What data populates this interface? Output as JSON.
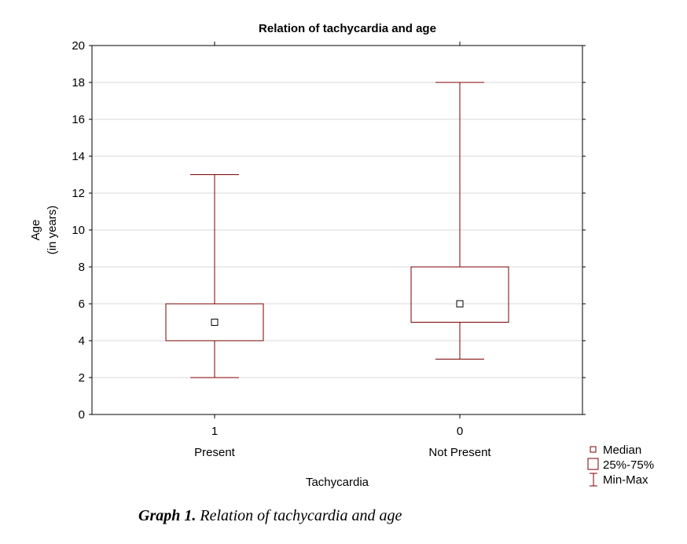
{
  "chart_data": {
    "type": "boxplot",
    "title": "Relation of tachycardia and age",
    "xlabel": "Tachycardia",
    "ylabel": [
      "Age",
      "(in years)"
    ],
    "ylim": [
      0,
      20
    ],
    "yticks": [
      0,
      2,
      4,
      6,
      8,
      10,
      12,
      14,
      16,
      18,
      20
    ],
    "grid": true,
    "categories": [
      {
        "code": "1",
        "label": "Present",
        "min": 2,
        "q1": 4,
        "median": 5,
        "q3": 6,
        "max": 13
      },
      {
        "code": "0",
        "label": "Not Present",
        "min": 3,
        "q1": 5,
        "median": 6,
        "q3": 8,
        "max": 18
      }
    ],
    "legend": {
      "placement": "bottom-right",
      "items": [
        "Median",
        "25%-75%",
        "Min-Max"
      ]
    },
    "color": "#7b0000"
  },
  "caption": {
    "label": "Graph 1.",
    "text": " Relation of tachycardia and age"
  }
}
